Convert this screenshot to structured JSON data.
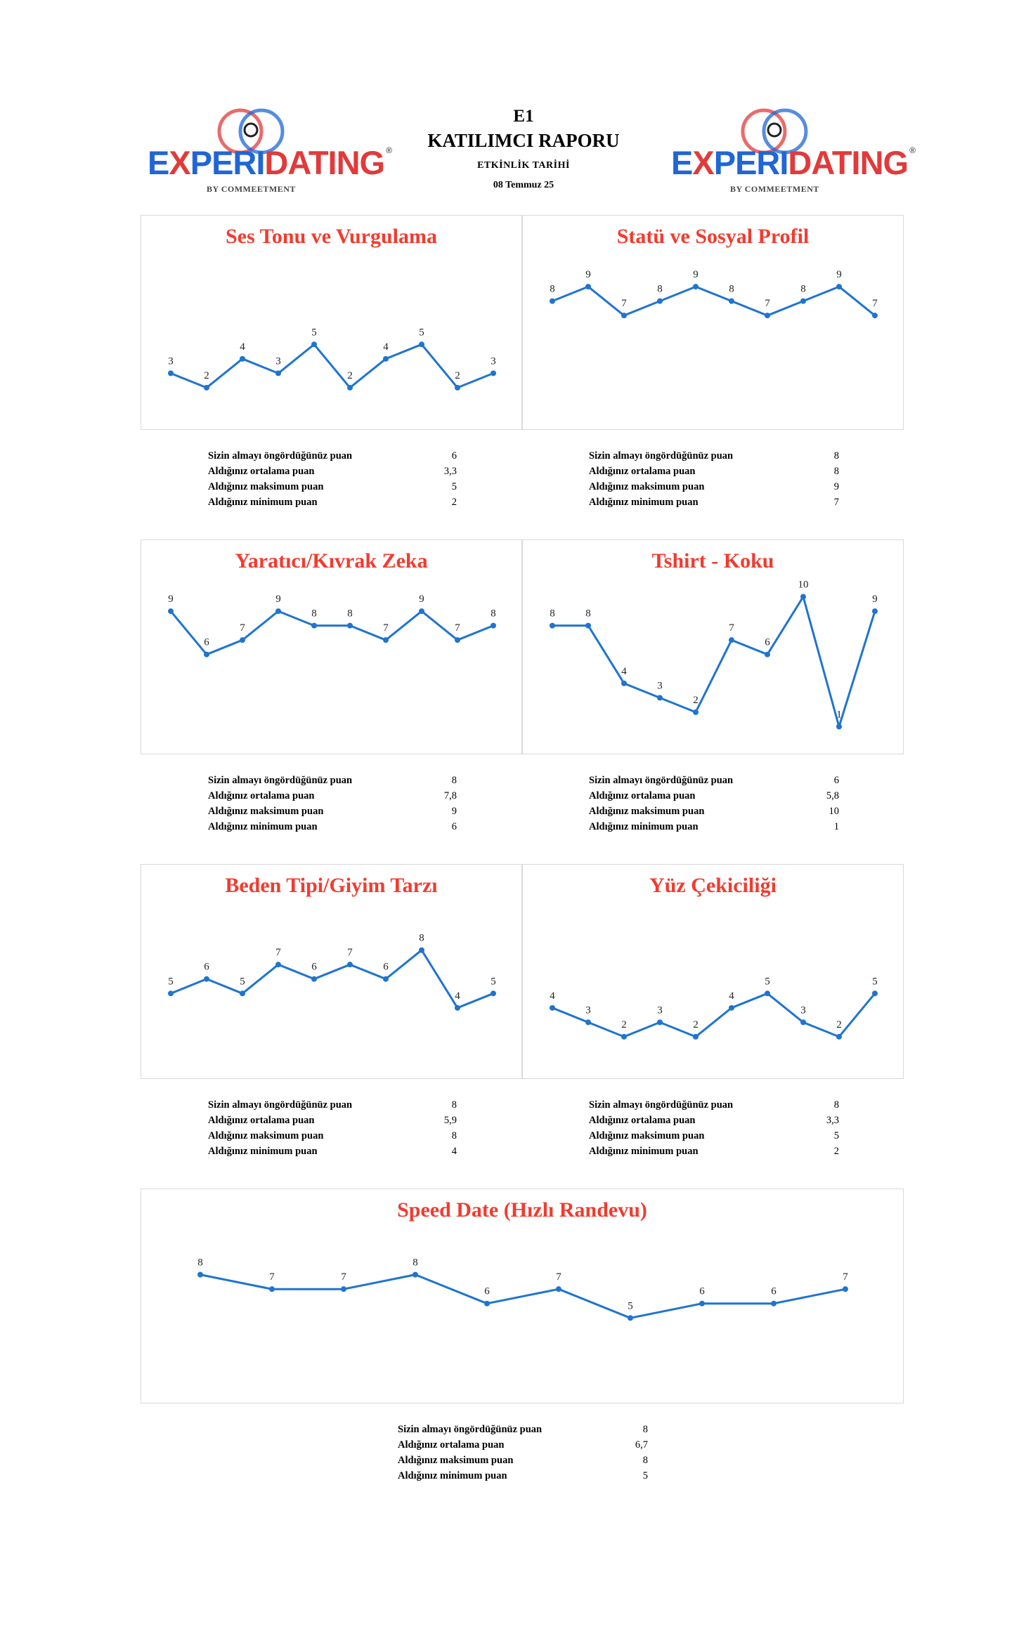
{
  "header": {
    "code": "E1",
    "title": "KATILIMCI RAPORU",
    "event_label": "ETKİNLİK TARİHİ",
    "event_date": "08 Temmuz 25"
  },
  "brand": {
    "word_blue_1": "E",
    "word_red_1": "X",
    "word_blue_2": "PERI",
    "word_red_2": "DATING",
    "trademark": "®",
    "subtitle": "BY COMMEETMENT",
    "colors": {
      "blue": "#1f66d6",
      "red": "#e23a3a"
    }
  },
  "stat_labels": {
    "predicted": "Sizin almayı öngördüğünüz puan",
    "average": "Aldığınız ortalama puan",
    "maximum": "Aldığınız maksimum puan",
    "minimum": "Aldığınız minimum puan"
  },
  "colors": {
    "title": "#f23b2f",
    "line": "#1f74d0"
  },
  "charts": [
    {
      "title": "Ses Tonu ve Vurgulama",
      "stats": {
        "predicted": "6",
        "average": "3,3",
        "maximum": "5",
        "minimum": "2"
      },
      "chart_data": {
        "type": "line",
        "values": [
          3,
          2,
          4,
          3,
          5,
          2,
          4,
          5,
          2,
          3
        ],
        "ylim": [
          0,
          11
        ]
      }
    },
    {
      "title": "Statü ve Sosyal Profil",
      "stats": {
        "predicted": "8",
        "average": "8",
        "maximum": "9",
        "minimum": "7"
      },
      "chart_data": {
        "type": "line",
        "values": [
          8,
          9,
          7,
          8,
          9,
          8,
          7,
          8,
          9,
          7
        ],
        "ylim": [
          0,
          11
        ]
      }
    },
    {
      "title": "Yaratıcı/Kıvrak Zeka",
      "stats": {
        "predicted": "8",
        "average": "7,8",
        "maximum": "9",
        "minimum": "6"
      },
      "chart_data": {
        "type": "line",
        "values": [
          9,
          6,
          7,
          9,
          8,
          8,
          7,
          9,
          7,
          8
        ],
        "ylim": [
          0,
          11
        ]
      }
    },
    {
      "title": "Tshirt - Koku",
      "stats": {
        "predicted": "6",
        "average": "5,8",
        "maximum": "10",
        "minimum": "1"
      },
      "chart_data": {
        "type": "line",
        "values": [
          8,
          8,
          4,
          3,
          2,
          7,
          6,
          10,
          1,
          9
        ],
        "ylim": [
          0,
          11
        ]
      }
    },
    {
      "title": "Beden Tipi/Giyim Tarzı",
      "stats": {
        "predicted": "8",
        "average": "5,9",
        "maximum": "8",
        "minimum": "4"
      },
      "chart_data": {
        "type": "line",
        "values": [
          5,
          6,
          5,
          7,
          6,
          7,
          6,
          8,
          4,
          5
        ],
        "ylim": [
          0,
          11
        ]
      }
    },
    {
      "title": "Yüz Çekiciliği",
      "stats": {
        "predicted": "8",
        "average": "3,3",
        "maximum": "5",
        "minimum": "2"
      },
      "chart_data": {
        "type": "line",
        "values": [
          4,
          3,
          2,
          3,
          2,
          4,
          5,
          3,
          2,
          5
        ],
        "ylim": [
          0,
          11
        ]
      }
    },
    {
      "title": "Speed Date (Hızlı Randevu)",
      "stats": {
        "predicted": "8",
        "average": "6,7",
        "maximum": "8",
        "minimum": "5"
      },
      "chart_data": {
        "type": "line",
        "values": [
          8,
          7,
          7,
          8,
          6,
          7,
          5,
          6,
          6,
          7
        ],
        "ylim": [
          0,
          11
        ]
      }
    }
  ]
}
